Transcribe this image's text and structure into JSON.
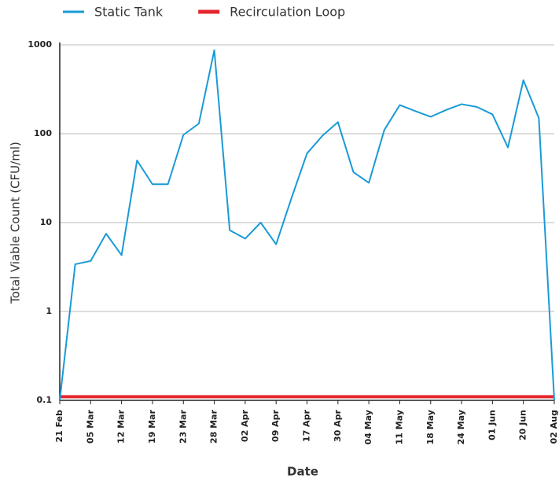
{
  "chart_data": {
    "type": "line",
    "x_label": "Date",
    "y_label": "Total Viable Count (CFU/ml)",
    "categories": [
      "21 Feb",
      null,
      "05 Mar",
      null,
      "12 Mar",
      null,
      "19 Mar",
      null,
      "23 Mar",
      null,
      "28 Mar",
      null,
      "02 Apr",
      null,
      "09 Apr",
      null,
      "17 Apr",
      null,
      "30 Apr",
      null,
      "04 May",
      null,
      "11 May",
      null,
      "18 May",
      null,
      "24 May",
      null,
      "01 Jun",
      null,
      "20 Jun",
      null,
      "02 Aug"
    ],
    "series": [
      {
        "name": "Static Tank",
        "color": "#1a9ad6",
        "width": 2,
        "values": [
          0.1,
          3.4,
          3.7,
          7.5,
          4.3,
          50,
          27,
          27,
          97,
          130,
          870,
          8.2,
          6.6,
          10,
          5.7,
          19,
          60,
          95,
          135,
          37,
          28,
          110,
          210,
          180,
          155,
          185,
          215,
          200,
          165,
          70,
          400,
          150,
          0.1
        ]
      },
      {
        "name": "Recirculation Loop",
        "color": "#e5262d",
        "width": 4,
        "values": [
          0.11,
          0.11,
          0.11,
          0.11,
          0.11,
          0.11,
          0.11,
          0.11,
          0.11,
          0.11,
          0.11,
          0.11,
          0.11,
          0.11,
          0.11,
          0.11,
          0.11,
          0.11,
          0.11,
          0.11,
          0.11,
          0.11,
          0.11,
          0.11,
          0.11,
          0.11,
          0.11,
          0.11,
          0.11,
          0.11,
          0.11,
          0.11,
          0.11
        ]
      }
    ],
    "ylim": [
      0.1,
      1000
    ],
    "yticks": [
      0.1,
      1,
      10,
      100,
      1000
    ],
    "y_scale": "log",
    "grid": true,
    "legend": "top"
  }
}
